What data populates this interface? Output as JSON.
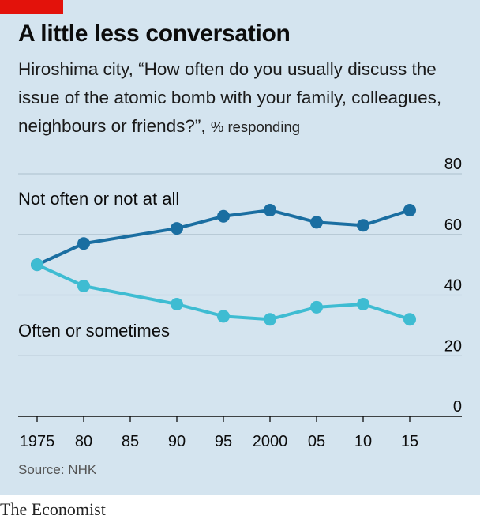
{
  "header": {
    "title": "A little less conversation",
    "subtitle": "Hiroshima city, “How often do you usually discuss the issue of the atomic bomb with your family, colleagues, neighbours or friends?”, ",
    "unit": "% responding"
  },
  "footer": {
    "source": "Source: NHK",
    "brand": "The Economist"
  },
  "colors": {
    "background": "#d4e4ef",
    "accent_red": "#e3120b",
    "dark_blue": "#1a6ea1",
    "light_blue": "#3ebcd2",
    "grid": "#b4c6d3"
  },
  "chart_data": {
    "type": "line",
    "x": [
      1975,
      1980,
      1990,
      1995,
      2000,
      2005,
      2010,
      2015
    ],
    "x_tick_labels": [
      "1975",
      "80",
      "85",
      "90",
      "95",
      "2000",
      "05",
      "10",
      "15"
    ],
    "x_tick_values": [
      1975,
      1980,
      1985,
      1990,
      1995,
      2000,
      2005,
      2010,
      2015
    ],
    "y_ticks": [
      0,
      20,
      40,
      60,
      80
    ],
    "ylim": [
      0,
      80
    ],
    "y_axis_side": "right",
    "grid": true,
    "series": [
      {
        "name": "Not often or not at all",
        "color": "#1a6ea1",
        "values": [
          50,
          57,
          62,
          66,
          68,
          64,
          63,
          68
        ]
      },
      {
        "name": "Often or sometimes",
        "color": "#3ebcd2",
        "values": [
          50,
          43,
          37,
          33,
          32,
          36,
          37,
          32
        ]
      }
    ]
  }
}
